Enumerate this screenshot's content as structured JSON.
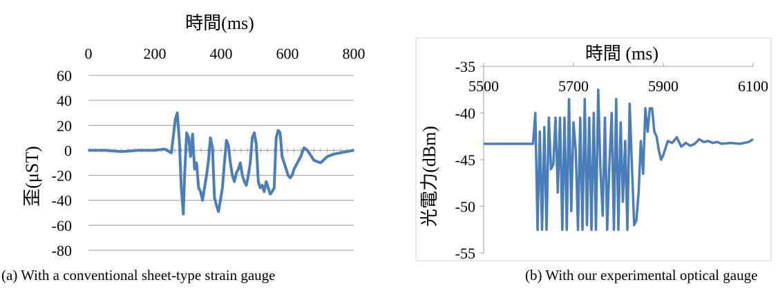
{
  "colors": {
    "series": "#4a7ebb",
    "grid": "#9c9c9c",
    "frame": "#d0d0d0",
    "text": "#000000"
  },
  "captions": {
    "a": "(a)  With a conventional sheet-type strain gauge",
    "b": "(b) With our experimental optical gauge"
  },
  "chart_data": [
    {
      "type": "line",
      "xlabel": "時間(ms)",
      "ylabel": "歪(μST)",
      "xlim": [
        0,
        800
      ],
      "ylim": [
        -80,
        60
      ],
      "xticks": [
        0,
        200,
        400,
        600,
        800
      ],
      "yticks": [
        60,
        40,
        20,
        0,
        -20,
        -40,
        -60,
        -80
      ],
      "x_axis_position": "top",
      "grid": true,
      "legend": "none",
      "series": [
        {
          "x": [
            0,
            50,
            100,
            150,
            200,
            230,
            250,
            262,
            268,
            274,
            280,
            286,
            290,
            296,
            302,
            308,
            314,
            320,
            326,
            332,
            338,
            344,
            350,
            356,
            362,
            368,
            374,
            380,
            386,
            392,
            398,
            404,
            410,
            416,
            422,
            428,
            434,
            440,
            446,
            452,
            458,
            464,
            470,
            476,
            482,
            488,
            494,
            500,
            506,
            512,
            518,
            524,
            530,
            536,
            542,
            548,
            554,
            560,
            566,
            572,
            578,
            584,
            590,
            596,
            602,
            608,
            614,
            620,
            630,
            640,
            650,
            660,
            680,
            700,
            720,
            740,
            760,
            780,
            800
          ],
          "y": [
            0,
            0,
            -1,
            0,
            0,
            1,
            -2,
            25,
            30,
            8,
            -30,
            -51,
            -20,
            14,
            10,
            -5,
            13,
            -15,
            -10,
            -30,
            -33,
            -40,
            -30,
            -20,
            -8,
            10,
            2,
            -38,
            -44,
            -49,
            -40,
            -30,
            -10,
            8,
            4,
            -10,
            -20,
            -25,
            -18,
            -15,
            -10,
            -20,
            -25,
            -28,
            -20,
            -10,
            10,
            14,
            5,
            -25,
            -30,
            -28,
            -33,
            -25,
            -30,
            -35,
            -33,
            -30,
            10,
            16,
            14,
            -5,
            -10,
            -15,
            -20,
            -22,
            -20,
            -15,
            -10,
            -5,
            2,
            0,
            -8,
            -10,
            -5,
            -3,
            -2,
            -1,
            0
          ]
        }
      ]
    },
    {
      "type": "line",
      "xlabel": "時間  (ms)",
      "ylabel": "光電力(dBm)",
      "xlim": [
        5500,
        6100
      ],
      "ylim": [
        -55,
        -35
      ],
      "xticks": [
        5500,
        5700,
        5900,
        6100
      ],
      "yticks": [
        -35,
        -40,
        -45,
        -50,
        -55
      ],
      "x_axis_position": "top",
      "grid": false,
      "legend": "none",
      "series": [
        {
          "x": [
            5500,
            5580,
            5610,
            5615,
            5620,
            5625,
            5630,
            5635,
            5640,
            5645,
            5650,
            5655,
            5660,
            5665,
            5670,
            5675,
            5680,
            5685,
            5690,
            5695,
            5700,
            5705,
            5710,
            5715,
            5720,
            5725,
            5730,
            5735,
            5740,
            5745,
            5750,
            5755,
            5760,
            5765,
            5770,
            5775,
            5780,
            5785,
            5790,
            5795,
            5800,
            5805,
            5810,
            5815,
            5820,
            5825,
            5830,
            5835,
            5840,
            5845,
            5850,
            5855,
            5860,
            5865,
            5870,
            5875,
            5880,
            5885,
            5890,
            5895,
            5900,
            5910,
            5920,
            5930,
            5940,
            5950,
            5960,
            5970,
            5980,
            5990,
            6000,
            6010,
            6020,
            6030,
            6050,
            6070,
            6090,
            6100
          ],
          "y": [
            -43.3,
            -43.3,
            -43.3,
            -40,
            -52.5,
            -42,
            -52.5,
            -41.5,
            -52.5,
            -40.5,
            -46,
            -45.5,
            -40.5,
            -48.5,
            -40.5,
            -52.5,
            -40.5,
            -52.5,
            -38.5,
            -50.5,
            -41,
            -44,
            -52.5,
            -40.5,
            -52.5,
            -38.5,
            -52,
            -40.5,
            -52.5,
            -40,
            -52.5,
            -37.5,
            -46,
            -51,
            -40.5,
            -52.5,
            -45.5,
            -40,
            -52.5,
            -38.5,
            -52.5,
            -41,
            -49.5,
            -43,
            -52.5,
            -39,
            -45.5,
            -52,
            -51.5,
            -48.5,
            -43,
            -46.5,
            -39.5,
            -42,
            -39.5,
            -39.5,
            -42,
            -42.5,
            -44,
            -45,
            -44.5,
            -43,
            -43.2,
            -42.6,
            -43.6,
            -43.2,
            -43.5,
            -43.3,
            -42.8,
            -43.1,
            -43.0,
            -43.2,
            -43.1,
            -43.3,
            -43.2,
            -43.3,
            -43.1,
            -42.8
          ]
        }
      ]
    }
  ]
}
